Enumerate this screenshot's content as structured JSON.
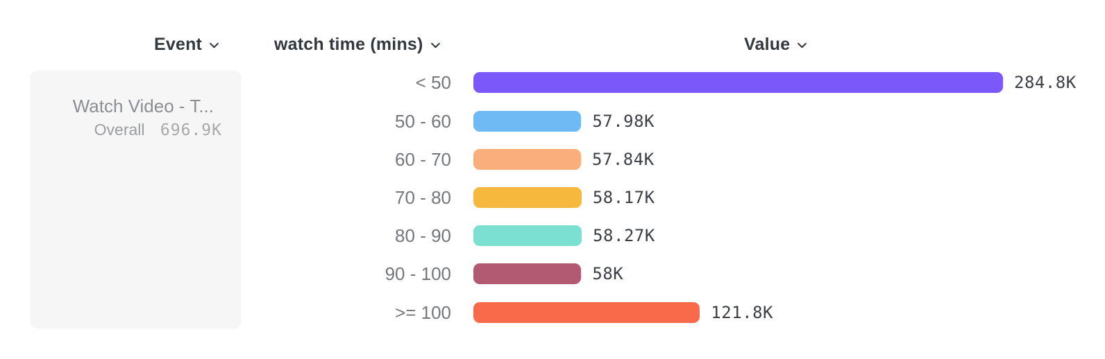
{
  "header": {
    "columns": [
      {
        "id": "event",
        "label": "Event"
      },
      {
        "id": "breakdown",
        "label": "watch time (mins)"
      },
      {
        "id": "value",
        "label": "Value"
      }
    ]
  },
  "event_card": {
    "title": "Watch Video - T...",
    "overall_label": "Overall",
    "overall_value": "696.9K"
  },
  "chart_data": {
    "type": "bar",
    "orientation": "horizontal",
    "title": "",
    "xlabel": "watch time (mins)",
    "ylabel": "Value",
    "categories": [
      "< 50",
      "50 - 60",
      "60 - 70",
      "70 - 80",
      "80 - 90",
      "90 - 100",
      ">= 100"
    ],
    "values": [
      284800,
      57980,
      57840,
      58170,
      58270,
      58000,
      121800
    ],
    "value_labels": [
      "284.8K",
      "57.98K",
      "57.84K",
      "58.17K",
      "58.27K",
      "58K",
      "121.8K"
    ],
    "bar_colors": [
      "#7A58FA",
      "#6FB9F4",
      "#F9AE7B",
      "#F6B93D",
      "#7BDFD1",
      "#B25A71",
      "#F96A4B"
    ],
    "overall": {
      "label": "Overall",
      "value": 696900,
      "value_label": "696.9K"
    },
    "xlim": [
      0,
      284800
    ],
    "grid": false,
    "legend": "none",
    "value_label_position": "right-of-bar"
  },
  "icons": {
    "chevron_color": "#363b42"
  }
}
